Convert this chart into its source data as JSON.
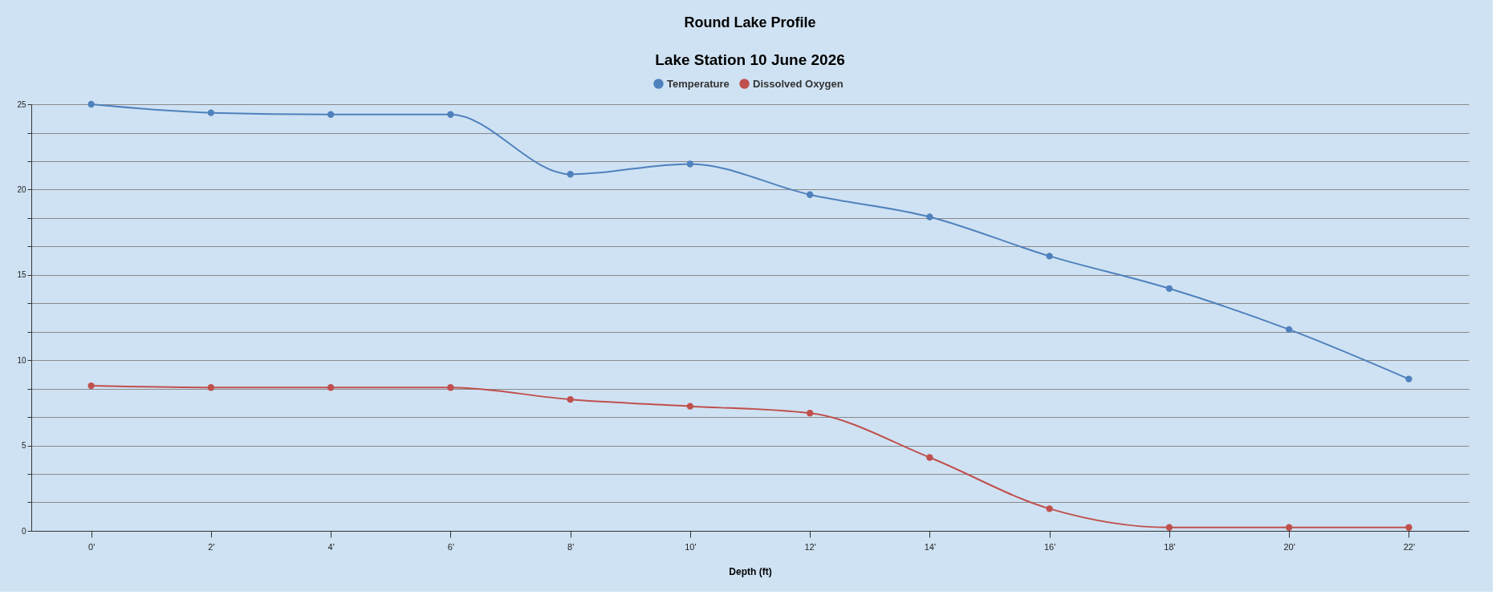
{
  "chart_data": {
    "type": "line",
    "title": "Round Lake Profile",
    "subtitle": "Lake Station 10 June 2026",
    "xlabel": "Depth (ft)",
    "categories": [
      "0'",
      "2'",
      "4'",
      "6'",
      "8'",
      "10'",
      "12'",
      "14'",
      "16'",
      "18'",
      "20'",
      "22'"
    ],
    "series": [
      {
        "name": "Temperature",
        "color": "#4f81bd",
        "values": [
          25,
          24.5,
          24.4,
          24.4,
          20.9,
          21.5,
          19.7,
          18.4,
          16.1,
          14.2,
          11.8,
          8.9
        ]
      },
      {
        "name": "Dissolved Oxygen",
        "color": "#c0504d",
        "values": [
          8.5,
          8.4,
          8.4,
          8.4,
          7.7,
          7.3,
          6.9,
          4.3,
          1.3,
          0.2,
          0.2,
          0.2
        ]
      }
    ],
    "ylim": [
      0,
      25
    ],
    "yticks": [
      0,
      {
        "value": 1.67,
        "label": null
      },
      {
        "value": 3.33,
        "label": null
      },
      5,
      {
        "value": 6.67,
        "label": null
      },
      {
        "value": 8.33,
        "label": null
      },
      10,
      {
        "value": 11.67,
        "label": null
      },
      {
        "value": 13.33,
        "label": null
      },
      15,
      {
        "value": 16.67,
        "label": null
      },
      {
        "value": 18.33,
        "label": null
      },
      20,
      {
        "value": 21.67,
        "label": null
      },
      {
        "value": 23.33,
        "label": null
      },
      25
    ],
    "grid": "y",
    "legend": "top",
    "marker": "circle",
    "line_style": "solid"
  }
}
